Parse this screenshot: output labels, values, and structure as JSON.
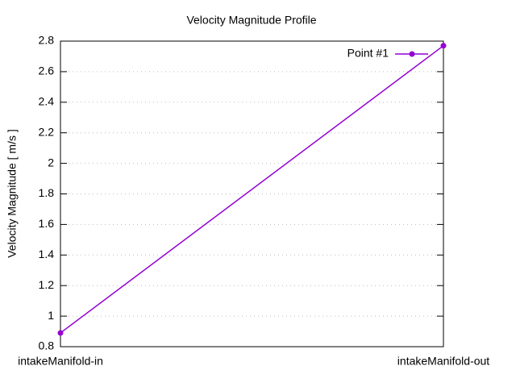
{
  "chart_data": {
    "type": "line",
    "title": "Velocity Magnitude Profile",
    "y_label": "Velocity Magnitude [ m/s ]",
    "categories": [
      "intakeManifold-in",
      "intakeManifold-out"
    ],
    "series": [
      {
        "name": "Point #1",
        "color": "#9400d3",
        "values": [
          0.89,
          2.77
        ]
      }
    ],
    "ylim": [
      0.8,
      2.8
    ],
    "yticks": [
      0.8,
      1,
      1.2,
      1.4,
      1.6,
      1.8,
      2,
      2.2,
      2.4,
      2.6,
      2.8
    ],
    "grid": true,
    "legend": "top-right"
  }
}
